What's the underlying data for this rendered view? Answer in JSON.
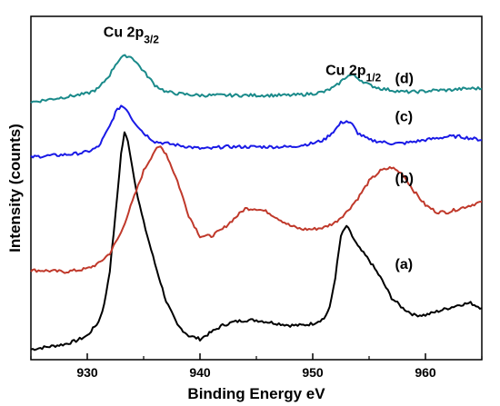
{
  "chart_data": {
    "type": "line",
    "title": "",
    "xlabel": "Binding Energy eV",
    "ylabel": "Intensity (counts)",
    "xlim": [
      925,
      965
    ],
    "ylim": [
      0,
      100
    ],
    "y_ticks_shown": false,
    "x_ticks": [
      930,
      940,
      950,
      960
    ],
    "x_tick_labels": [
      "930",
      "940",
      "950",
      "960"
    ],
    "grid": false,
    "legend": "none",
    "annotations": [
      {
        "text": "Cu 2p",
        "sub": "3/2",
        "x": 933.9,
        "y": 94
      },
      {
        "text": "Cu 2p",
        "sub": "1/2",
        "x": 953.6,
        "y": 83
      }
    ],
    "series": [
      {
        "name": "(a)",
        "color": "#000000",
        "x": [
          925,
          926,
          927,
          928,
          929,
          930,
          931,
          931.5,
          932,
          932.5,
          933,
          933.3,
          933.6,
          934,
          934.5,
          935,
          936,
          937,
          938,
          939,
          940,
          941,
          942,
          943,
          944,
          945,
          946,
          947,
          948,
          949,
          950,
          951,
          951.5,
          952,
          952.5,
          953,
          953.5,
          954,
          955,
          956,
          957,
          958,
          959,
          960,
          961,
          962,
          963,
          964,
          965
        ],
        "y": [
          3,
          3.5,
          4,
          4.5,
          5.5,
          7,
          11,
          16,
          26,
          42,
          60,
          66,
          64,
          56,
          47,
          40,
          28,
          17,
          10,
          7,
          6,
          8,
          10,
          11,
          11.5,
          11.5,
          11,
          10.5,
          10,
          10,
          10.5,
          12,
          15,
          24,
          36,
          39,
          36,
          33,
          29,
          24,
          18,
          15,
          13,
          13,
          14,
          15,
          16,
          16.5,
          15
        ]
      },
      {
        "name": "(b)",
        "color": "#c0392b",
        "x": [
          925,
          926,
          927,
          928,
          929,
          930,
          931,
          932,
          933,
          934,
          935,
          936,
          936.5,
          937,
          938,
          939,
          940,
          941,
          942,
          943,
          944,
          945,
          946,
          947,
          948,
          949,
          950,
          951,
          952,
          953,
          954,
          955,
          956,
          957,
          958,
          959,
          960,
          961,
          962,
          963,
          964,
          965
        ],
        "y": [
          26,
          26,
          25.8,
          25.6,
          26,
          26.5,
          28,
          31,
          37,
          46,
          55,
          61,
          62,
          60,
          52,
          42,
          36,
          36,
          38,
          41,
          44,
          44,
          43,
          41,
          39,
          38,
          38,
          38.5,
          40,
          43,
          47,
          52,
          55,
          56,
          54,
          49,
          45,
          43,
          43,
          44,
          45,
          46
        ]
      },
      {
        "name": "(c)",
        "color": "#1a1ae6",
        "x": [
          925,
          926,
          927,
          928,
          929,
          930,
          931,
          932,
          932.5,
          933,
          933.5,
          934,
          935,
          936,
          937,
          938,
          939,
          940,
          941,
          942,
          943,
          944,
          945,
          946,
          947,
          948,
          949,
          950,
          951,
          952,
          952.5,
          953,
          953.5,
          954,
          955,
          956,
          957,
          958,
          959,
          960,
          961,
          962,
          963,
          964,
          965
        ],
        "y": [
          59,
          59.3,
          59.5,
          59.7,
          60,
          60.5,
          62,
          68,
          72,
          74,
          73,
          70,
          66,
          63.5,
          63,
          62.5,
          62,
          61.5,
          61.5,
          62,
          62,
          62,
          62,
          62,
          62,
          62,
          62.5,
          63,
          64,
          67,
          69,
          69.5,
          68.5,
          66,
          64,
          63.5,
          63,
          63,
          63.5,
          64,
          64.5,
          65,
          65,
          64.5,
          64
        ]
      },
      {
        "name": "(d)",
        "color": "#1a8a8a",
        "x": [
          925,
          926,
          927,
          928,
          929,
          930,
          931,
          932,
          932.5,
          933,
          933.5,
          934,
          934.5,
          935,
          936,
          937,
          938,
          939,
          940,
          941,
          942,
          943,
          944,
          945,
          946,
          947,
          948,
          949,
          950,
          951,
          952,
          952.5,
          953,
          953.5,
          954,
          955,
          956,
          957,
          958,
          959,
          960,
          961,
          962,
          963,
          964,
          965
        ],
        "y": [
          75,
          75.5,
          76,
          76.5,
          77,
          77.5,
          79,
          83,
          86,
          88,
          88.5,
          88,
          86,
          84,
          80,
          78,
          77.5,
          77.2,
          77,
          77,
          77,
          77,
          77,
          77,
          77,
          77,
          77,
          77.2,
          77.5,
          78,
          79.5,
          81,
          82.5,
          83,
          82,
          80,
          79,
          78.5,
          78,
          78,
          78.2,
          78.5,
          78.5,
          78.8,
          79,
          79
        ]
      }
    ]
  }
}
